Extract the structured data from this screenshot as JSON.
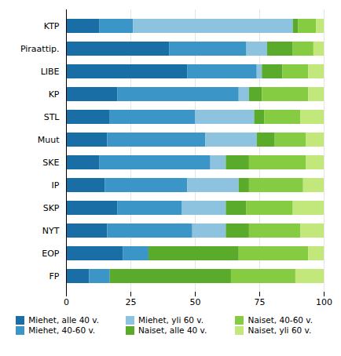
{
  "chart_data": {
    "type": "bar",
    "orientation": "horizontal",
    "stacked": true,
    "categories": [
      "KTP",
      "Piraattip.",
      "LIBE",
      "KP",
      "STL",
      "Muut",
      "SKE",
      "IP",
      "SKP",
      "NYT",
      "EOP",
      "FP"
    ],
    "series": [
      {
        "name": "Miehet, alle 40 v.",
        "color": "#1a6ea6",
        "values": [
          13,
          40,
          47,
          20,
          17,
          16,
          13,
          15,
          20,
          16,
          22,
          9
        ]
      },
      {
        "name": "Miehet, 40-60 v.",
        "color": "#3b95c7",
        "values": [
          13,
          30,
          27,
          47,
          33,
          38,
          43,
          32,
          25,
          33,
          10,
          8
        ]
      },
      {
        "name": "Miehet, yli 60 v.",
        "color": "#8dc3de",
        "values": [
          62,
          8,
          2,
          4,
          23,
          20,
          6,
          20,
          17,
          13,
          0,
          0
        ]
      },
      {
        "name": "Naiset, alle 40 v.",
        "color": "#5aaa2b",
        "values": [
          2,
          10,
          8,
          5,
          4,
          7,
          9,
          4,
          8,
          9,
          35,
          47
        ]
      },
      {
        "name": "Naiset, 40-60 v.",
        "color": "#86cc43",
        "values": [
          7,
          8,
          10,
          18,
          14,
          12,
          22,
          21,
          18,
          20,
          27,
          25
        ]
      },
      {
        "name": "Naiset, yli 60 v.",
        "color": "#c2e87c",
        "values": [
          3,
          4,
          6,
          6,
          9,
          7,
          7,
          8,
          12,
          9,
          6,
          11
        ]
      }
    ],
    "xlim": [
      0,
      100
    ],
    "xticks": [
      0,
      25,
      50,
      75,
      100
    ],
    "grid": true,
    "legend": "bottom"
  }
}
